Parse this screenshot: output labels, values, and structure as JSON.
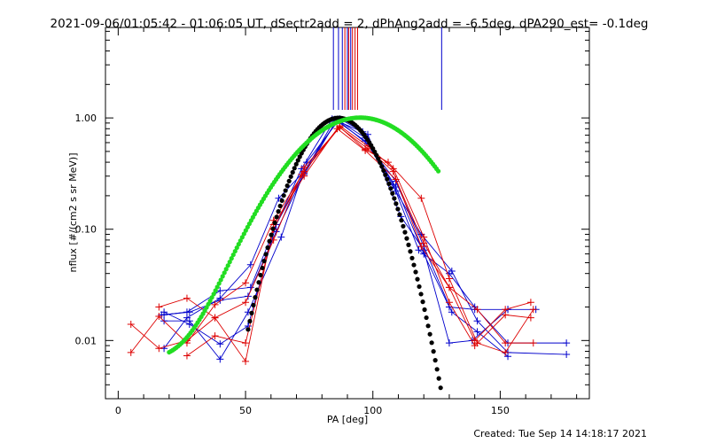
{
  "title": "2021-09-06/01:05:42 - 01:06:05 UT, dSectr2add = 2, dPhAng2add = -6.5deg, dPA290_est= -0.1deg",
  "footer": "Created: Tue Sep 14 14:18:17 2021",
  "colors": {
    "blue": "#0000cc",
    "red": "#dd0000",
    "black": "#000000",
    "green": "#22dd22"
  },
  "chart_data": {
    "type": "line",
    "xlabel": "PA [deg]",
    "ylabel": "nflux [#/(cm2 s sr MeV)]",
    "xlim": [
      -5,
      185
    ],
    "ylim": [
      0.003,
      6.5
    ],
    "yscale": "log",
    "x_ticks": [
      0,
      50,
      100,
      150
    ],
    "x_tick_labels": [
      "0",
      "50",
      "100",
      "150"
    ],
    "y_ticks": [
      0.01,
      0.1,
      1.0
    ],
    "y_tick_labels": [
      "0.01",
      "0.10",
      "1.00"
    ],
    "series": [
      {
        "color": "blue",
        "points": [
          [
            18,
            0.017
          ],
          [
            27,
            0.018
          ],
          [
            40,
            0.028
          ],
          [
            52,
            0.03
          ],
          [
            62,
            0.11
          ],
          [
            72,
            0.35
          ],
          [
            84,
            0.98
          ],
          [
            96,
            0.75
          ],
          [
            108,
            0.25
          ],
          [
            118,
            0.065
          ],
          [
            130,
            0.04
          ],
          [
            140,
            0.02
          ],
          [
            153,
            0.0095
          ],
          [
            176,
            0.0095
          ]
        ]
      },
      {
        "color": "blue",
        "points": [
          [
            18,
            0.0085
          ],
          [
            27,
            0.016
          ],
          [
            40,
            0.024
          ],
          [
            52,
            0.048
          ],
          [
            63,
            0.19
          ],
          [
            73,
            0.33
          ],
          [
            86,
            0.96
          ],
          [
            98,
            0.58
          ],
          [
            109,
            0.22
          ],
          [
            119,
            0.09
          ],
          [
            131,
            0.042
          ],
          [
            141,
            0.015
          ],
          [
            153,
            0.0078
          ],
          [
            176,
            0.0075
          ]
        ]
      },
      {
        "color": "blue",
        "points": [
          [
            18,
            0.018
          ],
          [
            28,
            0.014
          ],
          [
            40,
            0.0093
          ],
          [
            51,
            0.0135
          ],
          [
            62,
            0.11
          ],
          [
            73,
            0.32
          ],
          [
            85,
            0.97
          ],
          [
            97,
            0.62
          ],
          [
            109,
            0.27
          ],
          [
            120,
            0.07
          ],
          [
            131,
            0.018
          ],
          [
            141,
            0.012
          ],
          [
            153,
            0.0072
          ]
        ]
      },
      {
        "color": "blue",
        "points": [
          [
            18,
            0.015
          ],
          [
            28,
            0.015
          ],
          [
            40,
            0.0068
          ],
          [
            51,
            0.018
          ],
          [
            64,
            0.085
          ],
          [
            74,
            0.4
          ],
          [
            87,
            0.98
          ],
          [
            98,
            0.71
          ],
          [
            111,
            0.13
          ],
          [
            120,
            0.065
          ],
          [
            130,
            0.0095
          ],
          [
            139,
            0.01
          ],
          [
            153,
            0.019
          ],
          [
            164,
            0.019
          ]
        ]
      },
      {
        "color": "blue",
        "points": [
          [
            17,
            0.017
          ],
          [
            28,
            0.018
          ],
          [
            40,
            0.023
          ],
          [
            51,
            0.025
          ],
          [
            62,
            0.095
          ],
          [
            73,
            0.31
          ],
          [
            86,
            0.97
          ],
          [
            97,
            0.66
          ],
          [
            109,
            0.24
          ],
          [
            120,
            0.06
          ],
          [
            130,
            0.02
          ],
          [
            140,
            0.019
          ],
          [
            153,
            0.019
          ]
        ]
      },
      {
        "color": "red",
        "points": [
          [
            5,
            0.0078
          ],
          [
            16,
            0.0165
          ],
          [
            27,
            0.0095
          ],
          [
            38,
            0.021
          ],
          [
            50,
            0.033
          ],
          [
            61,
            0.12
          ],
          [
            73,
            0.33
          ],
          [
            87,
            0.83
          ],
          [
            97,
            0.52
          ],
          [
            106,
            0.4
          ],
          [
            119,
            0.19
          ],
          [
            130,
            0.036
          ],
          [
            141,
            0.0095
          ],
          [
            152,
            0.0078
          ],
          [
            163,
            0.019
          ]
        ]
      },
      {
        "color": "red",
        "points": [
          [
            5,
            0.014
          ],
          [
            16,
            0.0085
          ],
          [
            27,
            0.01
          ],
          [
            38,
            0.016
          ],
          [
            50,
            0.022
          ],
          [
            61,
            0.08
          ],
          [
            73,
            0.36
          ],
          [
            87,
            0.82
          ],
          [
            98,
            0.53
          ],
          [
            108,
            0.33
          ],
          [
            119,
            0.07
          ],
          [
            130,
            0.03
          ],
          [
            141,
            0.019
          ],
          [
            152,
            0.0095
          ],
          [
            163,
            0.0095
          ]
        ]
      },
      {
        "color": "red",
        "points": [
          [
            16,
            0.02
          ],
          [
            27,
            0.024
          ],
          [
            38,
            0.016
          ],
          [
            50,
            0.0065
          ],
          [
            61,
            0.11
          ],
          [
            73,
            0.3
          ],
          [
            86,
            0.8
          ],
          [
            97,
            0.51
          ],
          [
            109,
            0.28
          ],
          [
            120,
            0.075
          ],
          [
            130,
            0.03
          ],
          [
            140,
            0.01
          ],
          [
            152,
            0.019
          ],
          [
            162,
            0.022
          ]
        ]
      },
      {
        "color": "red",
        "points": [
          [
            27,
            0.0073
          ],
          [
            38,
            0.011
          ],
          [
            50,
            0.0095
          ],
          [
            61,
            0.1
          ],
          [
            72,
            0.31
          ],
          [
            87,
            0.85
          ],
          [
            98,
            0.56
          ],
          [
            108,
            0.35
          ],
          [
            120,
            0.085
          ],
          [
            130,
            0.022
          ],
          [
            140,
            0.009
          ],
          [
            152,
            0.017
          ],
          [
            162,
            0.016
          ]
        ]
      }
    ],
    "black_curve": {
      "color": "black",
      "center": 86.5,
      "peak": 1.0,
      "sigma": 12.0,
      "x_range": [
        51,
        127
      ]
    },
    "green_curve": {
      "color": "green",
      "center": 95.0,
      "peak": 1.0,
      "sigma": 20.5,
      "base": 0.0066,
      "x_range": [
        20,
        126
      ]
    },
    "vertical_markers": [
      {
        "pa": 84.5,
        "color": "blue"
      },
      {
        "pa": 86.5,
        "color": "blue"
      },
      {
        "pa": 88.0,
        "color": "blue"
      },
      {
        "pa": 90.0,
        "color": "blue"
      },
      {
        "pa": 91.3,
        "color": "blue"
      },
      {
        "pa": 127.0,
        "color": "blue"
      },
      {
        "pa": 89.0,
        "color": "red"
      },
      {
        "pa": 90.5,
        "color": "red"
      },
      {
        "pa": 92.0,
        "color": "red"
      },
      {
        "pa": 93.0,
        "color": "red"
      },
      {
        "pa": 94.0,
        "color": "red"
      }
    ]
  }
}
